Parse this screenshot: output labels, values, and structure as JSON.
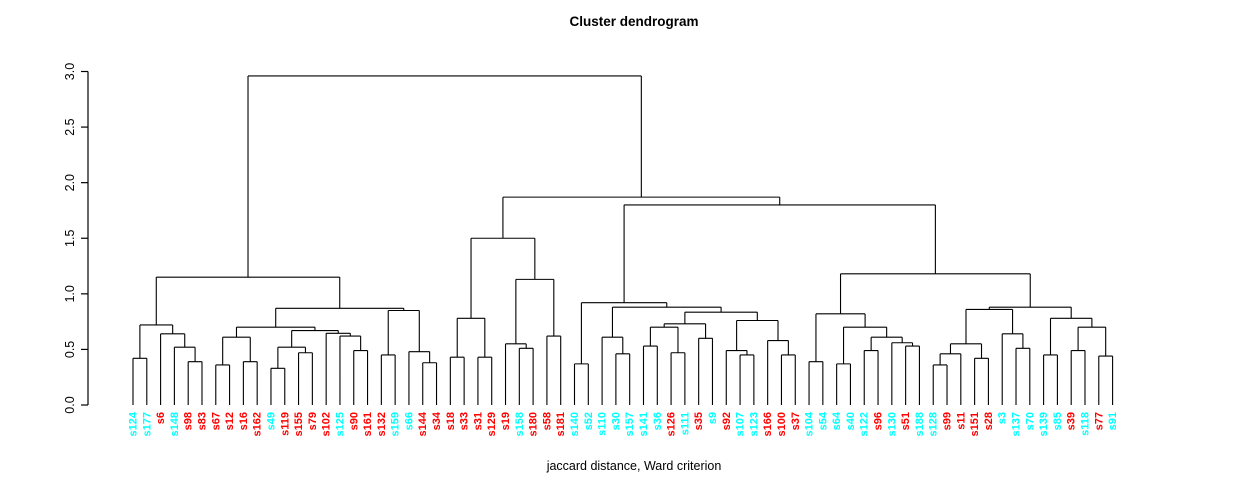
{
  "title": "Cluster dendrogram",
  "xlabel": "jaccard distance, Ward criterion",
  "colors": {
    "cluster_cyan": "#00FFFF",
    "cluster_red": "#FF0000",
    "line": "#000000",
    "axis_text": "#000000",
    "background": "#FFFFFF"
  },
  "chart_data": {
    "type": "dendrogram",
    "title": "Cluster dendrogram",
    "xlabel": "jaccard distance, Ward criterion",
    "ylabel": "",
    "grid": false,
    "legend": false,
    "y_axis": {
      "range": [
        0,
        3
      ],
      "ticks": [
        0,
        0.5,
        1,
        1.5,
        2,
        2.5,
        3
      ],
      "tick_labels": [
        "0.0",
        "0.5",
        "1.0",
        "1.5",
        "2.0",
        "2.5",
        "3.0"
      ]
    },
    "leaves": [
      {
        "label": "s124",
        "color": "cyan"
      },
      {
        "label": "s177",
        "color": "cyan"
      },
      {
        "label": "s6",
        "color": "red"
      },
      {
        "label": "s148",
        "color": "cyan"
      },
      {
        "label": "s98",
        "color": "red"
      },
      {
        "label": "s83",
        "color": "red"
      },
      {
        "label": "s67",
        "color": "red"
      },
      {
        "label": "s12",
        "color": "red"
      },
      {
        "label": "s16",
        "color": "red"
      },
      {
        "label": "s162",
        "color": "red"
      },
      {
        "label": "s49",
        "color": "cyan"
      },
      {
        "label": "s119",
        "color": "red"
      },
      {
        "label": "s155",
        "color": "red"
      },
      {
        "label": "s79",
        "color": "red"
      },
      {
        "label": "s102",
        "color": "red"
      },
      {
        "label": "s125",
        "color": "cyan"
      },
      {
        "label": "s90",
        "color": "red"
      },
      {
        "label": "s161",
        "color": "red"
      },
      {
        "label": "s132",
        "color": "red"
      },
      {
        "label": "s159",
        "color": "cyan"
      },
      {
        "label": "s66",
        "color": "cyan"
      },
      {
        "label": "s144",
        "color": "red"
      },
      {
        "label": "s34",
        "color": "red"
      },
      {
        "label": "s18",
        "color": "red"
      },
      {
        "label": "s33",
        "color": "red"
      },
      {
        "label": "s31",
        "color": "red"
      },
      {
        "label": "s129",
        "color": "red"
      },
      {
        "label": "s19",
        "color": "red"
      },
      {
        "label": "s158",
        "color": "cyan"
      },
      {
        "label": "s180",
        "color": "red"
      },
      {
        "label": "s58",
        "color": "red"
      },
      {
        "label": "s181",
        "color": "red"
      },
      {
        "label": "s140",
        "color": "cyan"
      },
      {
        "label": "s52",
        "color": "cyan"
      },
      {
        "label": "s110",
        "color": "cyan"
      },
      {
        "label": "s30",
        "color": "cyan"
      },
      {
        "label": "s157",
        "color": "cyan"
      },
      {
        "label": "s141",
        "color": "cyan"
      },
      {
        "label": "s36",
        "color": "cyan"
      },
      {
        "label": "s126",
        "color": "red"
      },
      {
        "label": "s111",
        "color": "cyan"
      },
      {
        "label": "s35",
        "color": "red"
      },
      {
        "label": "s9",
        "color": "cyan"
      },
      {
        "label": "s92",
        "color": "red"
      },
      {
        "label": "s107",
        "color": "cyan"
      },
      {
        "label": "s123",
        "color": "cyan"
      },
      {
        "label": "s166",
        "color": "red"
      },
      {
        "label": "s100",
        "color": "red"
      },
      {
        "label": "s37",
        "color": "red"
      },
      {
        "label": "s104",
        "color": "cyan"
      },
      {
        "label": "s54",
        "color": "cyan"
      },
      {
        "label": "s64",
        "color": "cyan"
      },
      {
        "label": "s40",
        "color": "cyan"
      },
      {
        "label": "s122",
        "color": "cyan"
      },
      {
        "label": "s96",
        "color": "red"
      },
      {
        "label": "s130",
        "color": "cyan"
      },
      {
        "label": "s51",
        "color": "red"
      },
      {
        "label": "s188",
        "color": "cyan"
      },
      {
        "label": "s128",
        "color": "cyan"
      },
      {
        "label": "s99",
        "color": "red"
      },
      {
        "label": "s11",
        "color": "red"
      },
      {
        "label": "s151",
        "color": "red"
      },
      {
        "label": "s28",
        "color": "red"
      },
      {
        "label": "s3",
        "color": "cyan"
      },
      {
        "label": "s137",
        "color": "cyan"
      },
      {
        "label": "s70",
        "color": "cyan"
      },
      {
        "label": "s139",
        "color": "cyan"
      },
      {
        "label": "s85",
        "color": "cyan"
      },
      {
        "label": "s39",
        "color": "red"
      },
      {
        "label": "s118",
        "color": "cyan"
      },
      {
        "label": "s77",
        "color": "red"
      },
      {
        "label": "s91",
        "color": "cyan"
      }
    ],
    "tree": {
      "h": 2.96,
      "c": [
        {
          "h": 1.15,
          "c": [
            {
              "h": 0.72,
              "c": [
                {
                  "h": 0.42,
                  "c": [
                    "s124",
                    "s177"
                  ]
                },
                {
                  "h": 0.64,
                  "c": [
                    "s6",
                    {
                      "h": 0.52,
                      "c": [
                        "s148",
                        {
                          "h": 0.39,
                          "c": [
                            "s98",
                            "s83"
                          ]
                        }
                      ]
                    }
                  ]
                }
              ]
            },
            {
              "h": 0.87,
              "c": [
                {
                  "h": 0.7,
                  "c": [
                    {
                      "h": 0.61,
                      "c": [
                        {
                          "h": 0.36,
                          "c": [
                            "s67",
                            "s12"
                          ]
                        },
                        {
                          "h": 0.39,
                          "c": [
                            "s16",
                            "s162"
                          ]
                        }
                      ]
                    },
                    {
                      "h": 0.67,
                      "c": [
                        {
                          "h": 0.52,
                          "c": [
                            {
                              "h": 0.33,
                              "c": [
                                "s49",
                                "s119"
                              ]
                            },
                            {
                              "h": 0.47,
                              "c": [
                                "s155",
                                "s79"
                              ]
                            }
                          ]
                        },
                        {
                          "h": 0.645,
                          "c": [
                            "s102",
                            {
                              "h": 0.62,
                              "c": [
                                "s125",
                                {
                                  "h": 0.49,
                                  "c": [
                                    "s90",
                                    "s161"
                                  ]
                                }
                              ]
                            }
                          ]
                        }
                      ]
                    }
                  ]
                },
                {
                  "h": 0.85,
                  "c": [
                    {
                      "h": 0.45,
                      "c": [
                        "s132",
                        "s159"
                      ]
                    },
                    {
                      "h": 0.48,
                      "c": [
                        "s66",
                        {
                          "h": 0.38,
                          "c": [
                            "s144",
                            "s34"
                          ]
                        }
                      ]
                    }
                  ]
                }
              ]
            }
          ]
        },
        {
          "h": 1.87,
          "c": [
            {
              "h": 1.5,
              "c": [
                {
                  "h": 0.78,
                  "c": [
                    {
                      "h": 0.43,
                      "c": [
                        "s18",
                        "s33"
                      ]
                    },
                    {
                      "h": 0.43,
                      "c": [
                        "s31",
                        "s129"
                      ]
                    }
                  ]
                },
                {
                  "h": 1.13,
                  "c": [
                    {
                      "h": 0.55,
                      "c": [
                        "s19",
                        {
                          "h": 0.51,
                          "c": [
                            "s158",
                            "s180"
                          ]
                        }
                      ]
                    },
                    {
                      "h": 0.62,
                      "c": [
                        "s58",
                        "s181"
                      ]
                    }
                  ]
                }
              ]
            },
            {
              "h": 1.8,
              "c": [
                {
                  "h": 0.92,
                  "c": [
                    {
                      "h": 0.37,
                      "c": [
                        "s140",
                        "s52"
                      ]
                    },
                    {
                      "h": 0.88,
                      "c": [
                        {
                          "h": 0.61,
                          "c": [
                            "s110",
                            {
                              "h": 0.46,
                              "c": [
                                "s30",
                                "s157"
                              ]
                            }
                          ]
                        },
                        {
                          "h": 0.835,
                          "c": [
                            {
                              "h": 0.73,
                              "c": [
                                {
                                  "h": 0.7,
                                  "c": [
                                    {
                                      "h": 0.53,
                                      "c": [
                                        "s141",
                                        "s36"
                                      ]
                                    },
                                    {
                                      "h": 0.47,
                                      "c": [
                                        "s126",
                                        "s111"
                                      ]
                                    }
                                  ]
                                },
                                {
                                  "h": 0.6,
                                  "c": [
                                    "s35",
                                    "s9"
                                  ]
                                }
                              ]
                            },
                            {
                              "h": 0.76,
                              "c": [
                                {
                                  "h": 0.49,
                                  "c": [
                                    "s92",
                                    {
                                      "h": 0.45,
                                      "c": [
                                        "s107",
                                        "s123"
                                      ]
                                    }
                                  ]
                                },
                                {
                                  "h": 0.58,
                                  "c": [
                                    "s166",
                                    {
                                      "h": 0.45,
                                      "c": [
                                        "s100",
                                        "s37"
                                      ]
                                    }
                                  ]
                                }
                              ]
                            }
                          ]
                        }
                      ]
                    }
                  ]
                },
                {
                  "h": 1.18,
                  "c": [
                    {
                      "h": 0.82,
                      "c": [
                        {
                          "h": 0.39,
                          "c": [
                            "s104",
                            "s54"
                          ]
                        },
                        {
                          "h": 0.7,
                          "c": [
                            {
                              "h": 0.37,
                              "c": [
                                "s64",
                                "s40"
                              ]
                            },
                            {
                              "h": 0.61,
                              "c": [
                                {
                                  "h": 0.49,
                                  "c": [
                                    "s122",
                                    "s96"
                                  ]
                                },
                                {
                                  "h": 0.56,
                                  "c": [
                                    "s130",
                                    {
                                      "h": 0.53,
                                      "c": [
                                        "s51",
                                        "s188"
                                      ]
                                    }
                                  ]
                                }
                              ]
                            }
                          ]
                        }
                      ]
                    },
                    {
                      "h": 0.88,
                      "c": [
                        {
                          "h": 0.86,
                          "c": [
                            {
                              "h": 0.55,
                              "c": [
                                {
                                  "h": 0.46,
                                  "c": [
                                    {
                                      "h": 0.36,
                                      "c": [
                                        "s128",
                                        "s99"
                                      ]
                                    },
                                    "s11"
                                  ]
                                },
                                {
                                  "h": 0.42,
                                  "c": [
                                    "s151",
                                    "s28"
                                  ]
                                }
                              ]
                            },
                            {
                              "h": 0.64,
                              "c": [
                                "s3",
                                {
                                  "h": 0.51,
                                  "c": [
                                    "s137",
                                    "s70"
                                  ]
                                }
                              ]
                            }
                          ]
                        },
                        {
                          "h": 0.78,
                          "c": [
                            {
                              "h": 0.45,
                              "c": [
                                "s139",
                                "s85"
                              ]
                            },
                            {
                              "h": 0.7,
                              "c": [
                                {
                                  "h": 0.49,
                                  "c": [
                                    "s39",
                                    "s118"
                                  ]
                                },
                                {
                                  "h": 0.44,
                                  "c": [
                                    "s77",
                                    "s91"
                                  ]
                                }
                              ]
                            }
                          ]
                        }
                      ]
                    }
                  ]
                }
              ]
            }
          ]
        }
      ]
    }
  }
}
